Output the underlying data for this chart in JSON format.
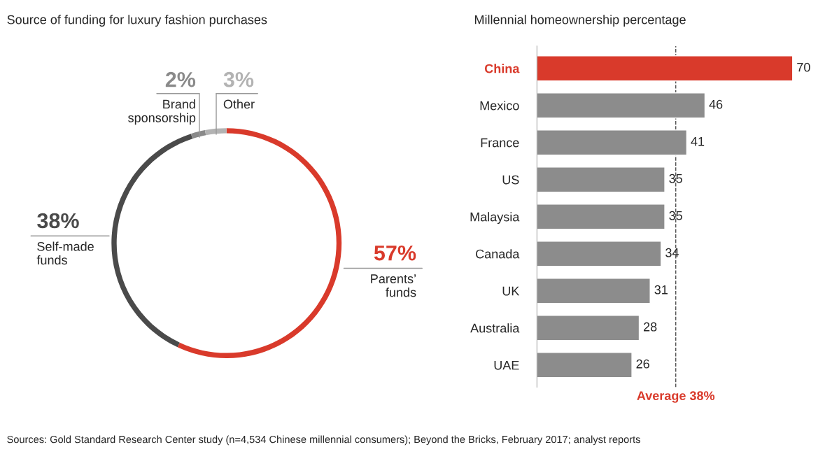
{
  "chart_data": [
    {
      "type": "donut",
      "title": "Source of funding for luxury fashion purchases",
      "categories": [
        "Parents’\nfunds",
        "Self-made\nfunds",
        "Brand\nsponsorship",
        "Other"
      ],
      "values": [
        57,
        38,
        2,
        3
      ],
      "colors": [
        "#d93a2b",
        "#4a4a4a",
        "#8a8a8a",
        "#b3b3b3"
      ],
      "value_labels": [
        "57%",
        "38%",
        "2%",
        "3%"
      ],
      "annotations": [
        "Sources: Gold Standard Research Center study (n=4,534 Chinese millennial consumers); Beyond the Bricks, February 2017; analyst reports"
      ]
    },
    {
      "type": "bar",
      "orientation": "horizontal",
      "title": "Millennial homeownership percentage",
      "categories": [
        "China",
        "Mexico",
        "France",
        "US",
        "Malaysia",
        "Canada",
        "UK",
        "Australia",
        "UAE"
      ],
      "values": [
        70,
        46,
        41,
        35,
        35,
        34,
        31,
        28,
        26
      ],
      "colors": [
        "#d93a2b",
        "#8c8c8c",
        "#8c8c8c",
        "#8c8c8c",
        "#8c8c8c",
        "#8c8c8c",
        "#8c8c8c",
        "#8c8c8c",
        "#8c8c8c"
      ],
      "data_labels": true,
      "tick_labels": "y",
      "grid": false,
      "ref_lines": [
        {
          "axis": "x",
          "value": 38,
          "label": "Average 38%",
          "color": "#555555",
          "line_style": "dashed"
        }
      ]
    }
  ]
}
